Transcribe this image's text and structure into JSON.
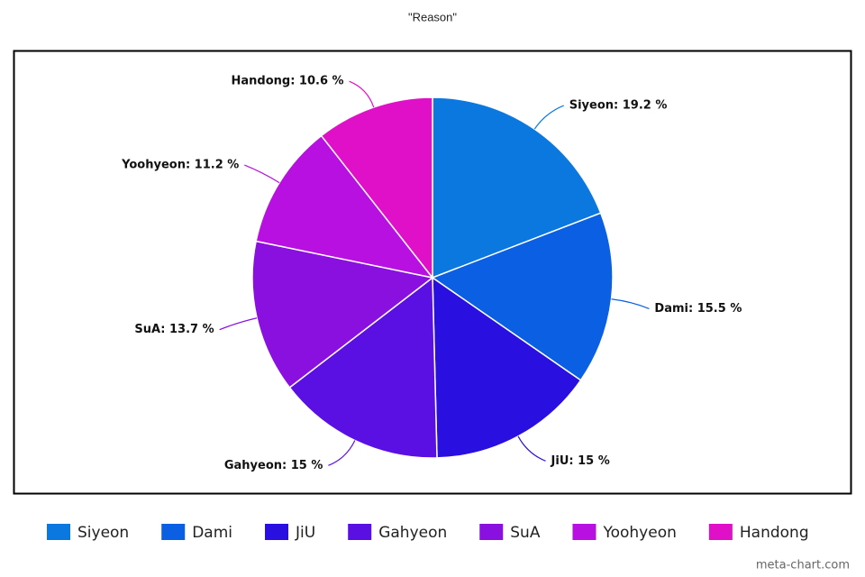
{
  "chart_data": {
    "type": "pie",
    "title": "\"Reason\"",
    "categories": [
      "Siyeon",
      "Dami",
      "JiU",
      "Gahyeon",
      "SuA",
      "Yoohyeon",
      "Handong"
    ],
    "values": [
      19.2,
      15.5,
      15,
      15,
      13.7,
      11.2,
      10.6
    ],
    "value_labels": [
      "Siyeon: 19.2 %",
      "Dami: 15.5 %",
      "JiU: 15 %",
      "Gahyeon: 15 %",
      "SuA: 13.7 %",
      "Yoohyeon: 11.2 %",
      "Handong: 10.6 %"
    ],
    "colors": [
      "#0b78e0",
      "#0a5fe2",
      "#2a10e0",
      "#5a10e2",
      "#8a10e0",
      "#b810e0",
      "#e010c8"
    ],
    "legend": "bottom",
    "watermark": "meta-chart.com"
  }
}
